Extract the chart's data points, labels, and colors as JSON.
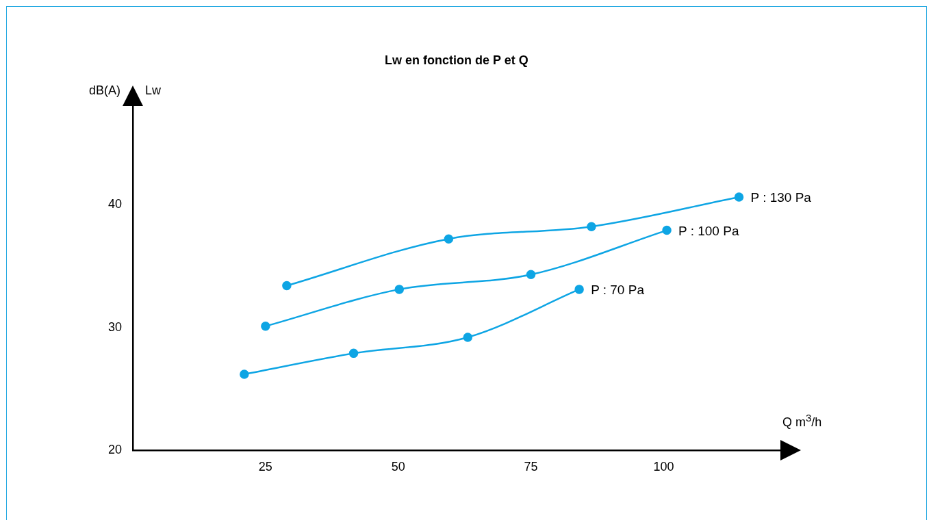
{
  "chart_data": {
    "type": "line",
    "title": "Lw en fonction de P et Q",
    "xlabel": "Q m$^{3}$/h",
    "ylabel": "Lw",
    "annotations": [
      "dB(A)"
    ],
    "xlim": [
      0,
      122
    ],
    "xticks": [
      25,
      50,
      75,
      100
    ],
    "ylim": [
      20,
      48
    ],
    "yticks": [
      20,
      30,
      40
    ],
    "grid": false,
    "legend": false,
    "marker": "circle",
    "line_style": "solid",
    "series": [
      {
        "name": "P : 70 Pa",
        "color": "#0ea5e4",
        "x": [
          21.0,
          41.6,
          63.1,
          84.1
        ],
        "values": [
          26.2,
          27.9,
          29.2,
          33.1
        ]
      },
      {
        "name": "P : 100 Pa",
        "color": "#0ea5e4",
        "x": [
          25.0,
          50.2,
          75.0,
          100.6
        ],
        "values": [
          30.1,
          33.1,
          34.3,
          37.9
        ]
      },
      {
        "name": "P : 130 Pa",
        "color": "#0ea5e4",
        "x": [
          29.0,
          59.5,
          86.4,
          114.2
        ],
        "values": [
          33.4,
          37.2,
          38.2,
          40.6
        ]
      }
    ]
  }
}
